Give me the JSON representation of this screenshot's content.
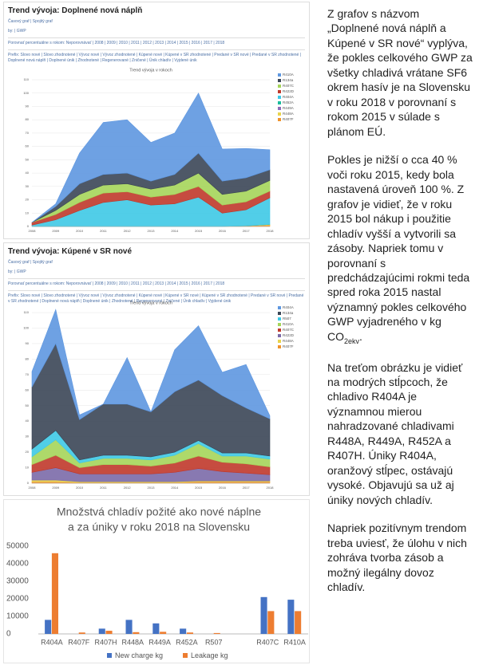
{
  "chart_data": [
    {
      "type": "area",
      "title": "Trend vývoja v rokoch",
      "header": {
        "title": "Trend vývoja: Doplnené nová náplň",
        "links": "Časový graf | Spojitý graf",
        "by": "by: | GWP",
        "compare": "Porovnať percentuálne s rokom: Neporovnávať | 2008 | 2009 | 2010 | 2011 | 2012 | 2013 | 2014 | 2015 | 2016 | 2017 | 2018",
        "prefix": "Prefix: Slovo nové | Slovo zhodnotené | Vývoz nové | Vývoz zhodnotené | Kúpené nové | Kúpené v SR zhodnotené | Predané v SR nové | Predané v SR zhodnotené | Doplnené nová náplň | Doplnené únik | Zhodnotené | Regenerované | Zničené | Únik chladív | Vyjdené únik"
      },
      "categories": [
        "2008",
        "2009",
        "2010",
        "2011",
        "2012",
        "2013",
        "2014",
        "2015",
        "2016",
        "2017",
        "2018"
      ],
      "ylim": [
        0,
        110
      ],
      "yticks": [
        0,
        10,
        20,
        30,
        40,
        50,
        60,
        70,
        80,
        90,
        100,
        110
      ],
      "grid": true,
      "series": [
        {
          "name": "R407F",
          "color": "#f0932b",
          "values": [
            0,
            0,
            0,
            0,
            0,
            0,
            0,
            0,
            0,
            0.5,
            1
          ]
        },
        {
          "name": "R448A",
          "color": "#e8d44d",
          "values": [
            0,
            0,
            0,
            0,
            0,
            0,
            0,
            0,
            0,
            0,
            0.5
          ]
        },
        {
          "name": "R449A",
          "color": "#8e6bb8",
          "values": [
            0,
            0,
            0,
            0,
            0,
            0,
            0,
            0,
            0,
            0,
            0
          ]
        },
        {
          "name": "R452A",
          "color": "#1abc9c",
          "values": [
            0,
            0,
            0,
            0,
            0,
            0,
            0,
            0,
            0,
            0,
            0
          ]
        },
        {
          "name": "R404A",
          "color": "#3ec9e6",
          "values": [
            1,
            5,
            12,
            18,
            20,
            16,
            17,
            22,
            10,
            12,
            20
          ]
        },
        {
          "name": "R422D",
          "color": "#c0392b",
          "values": [
            2,
            4,
            6,
            7,
            6,
            6,
            7,
            8,
            6,
            6,
            5
          ]
        },
        {
          "name": "R407C",
          "color": "#a5d55a",
          "values": [
            0,
            3,
            6,
            6,
            6,
            6,
            7,
            10,
            8,
            8,
            8
          ]
        },
        {
          "name": "R134a",
          "color": "#3b4656",
          "values": [
            0,
            3,
            8,
            8,
            8,
            6,
            8,
            15,
            10,
            10,
            8
          ]
        },
        {
          "name": "R410A",
          "color": "#5e97e0",
          "values": [
            0,
            2,
            23,
            39,
            40,
            29,
            31,
            45,
            24,
            22,
            15
          ]
        }
      ]
    },
    {
      "type": "area",
      "title": "Trend vývoja v rokoch",
      "header": {
        "title": "Trend vývoja: Kúpené v SR nové",
        "links": "Časový graf | Spojitý graf",
        "by": "by: | GWP",
        "compare": "Porovnať percentuálne s rokom: Neporovnávať | 2008 | 2009 | 2010 | 2011 | 2012 | 2013 | 2014 | 2015 | 2016 | 2017 | 2018",
        "prefix": "Prefix: Slovo nové | Slovo zhodnotené | Vývoz nové | Vývoz zhodnotené | Kúpené nové | Kúpené v SR nové | Kúpené v SR zhodnotené | Predané v SR nové | Predané v SR zhodnotené | Doplnené nová náplň | Doplnené únik | Zhodnotené | Regenerované | Zničené | Únik chladív | Vyjdené únik"
      },
      "categories": [
        "2008",
        "2009",
        "2010",
        "2011",
        "2012",
        "2013",
        "2014",
        "2015",
        "2016",
        "2017",
        "2018"
      ],
      "ylim": [
        0,
        110
      ],
      "yticks": [
        0,
        10,
        20,
        30,
        40,
        50,
        60,
        70,
        80,
        90,
        100,
        110
      ],
      "grid": true,
      "series": [
        {
          "name": "R407F",
          "color": "#f0932b",
          "values": [
            1,
            1,
            0.5,
            0.5,
            0.5,
            0.5,
            0.5,
            1,
            1,
            1,
            1
          ]
        },
        {
          "name": "R448A",
          "color": "#e8d44d",
          "values": [
            1,
            1,
            0.5,
            0.5,
            0.5,
            0.5,
            0.5,
            0.5,
            0.5,
            0.5,
            0.5
          ]
        },
        {
          "name": "R422D",
          "color": "#7b6aa8",
          "values": [
            5,
            8,
            5,
            5,
            5,
            5,
            6,
            8,
            6,
            5,
            4
          ]
        },
        {
          "name": "R407C",
          "color": "#c0392b",
          "values": [
            5,
            8,
            4,
            6,
            6,
            5,
            6,
            8,
            6,
            6,
            5
          ]
        },
        {
          "name": "R410A",
          "color": "#a5d55a",
          "values": [
            5,
            10,
            3,
            4,
            4,
            4,
            5,
            8,
            4,
            5,
            5
          ]
        },
        {
          "name": "R507",
          "color": "#3ec9e6",
          "values": [
            5,
            6,
            2,
            2,
            2,
            2,
            2,
            2,
            2,
            2,
            2
          ]
        },
        {
          "name": "R134a",
          "color": "#3b4656",
          "values": [
            40,
            56,
            26,
            33,
            33,
            29,
            39,
            39,
            37,
            29,
            24
          ]
        },
        {
          "name": "R404A",
          "color": "#5e97e0",
          "values": [
            10,
            22,
            3,
            0,
            30,
            0,
            27,
            35,
            15,
            28,
            2
          ]
        }
      ]
    },
    {
      "type": "bar",
      "title": [
        "Množstvá chladív požité ako nové náplne",
        "a za úniky v roku 2018 na Slovensku"
      ],
      "categories": [
        "R404A",
        "R407F",
        "R407H",
        "R448A",
        "R449A",
        "R452A",
        "R507",
        null,
        "R407C",
        "R410A"
      ],
      "ylim": [
        0,
        50000
      ],
      "yticks": [
        0,
        10000,
        20000,
        30000,
        40000,
        50000
      ],
      "grid": false,
      "series": [
        {
          "name": "New charge kg",
          "color": "#4472c4",
          "values": [
            8000,
            0,
            3000,
            8000,
            6000,
            3000,
            0,
            null,
            21000,
            19500
          ]
        },
        {
          "name": "Leakage kg",
          "color": "#ed7d31",
          "values": [
            46000,
            800,
            1800,
            1000,
            1200,
            800,
            500,
            null,
            13000,
            13000
          ]
        }
      ]
    }
  ],
  "document": {
    "paragraphs": [
      {
        "text": "Z grafov s názvom „Doplnené nová náplň a Kúpené v SR nové“ vyplýva, že pokles celkového GWP za všetky chladivá vrátane SF6 okrem hasív je na Slovensku v roku 2018 v porovnaní s rokom 2015 v súlade s plánom EÚ."
      },
      {
        "text": "Pokles je nižší o cca 40 % voči roku 2015, kedy bola nastavená úroveň 100 %. Z grafov je vidieť, že v roku 2015 bol nákup i použitie chladív vyšší a vytvorili sa zásoby. Napriek tomu v porovnaní s predchádzajúcimi rokmi teda spred roka 2015 nastal významný pokles celkového GWP vyjadreného v kg CO",
        "sub": "2ekv",
        "after": "."
      },
      {
        "text": "Na treťom obrázku je vidieť na modrých stĺpcoch, že chladivo R404A je významnou mierou nahradzované chladivami R448A, R449A, R452A a R407H. Úniky R404A, oranžový stĺpec, ostávajú vysoké. Objavujú sa už aj úniky nových chladív."
      },
      {
        "text": "Napriek pozitívnym trendom treba uviesť, že úlohu v nich zohráva tvorba zásob a možný ilegálny dovoz chladív."
      }
    ]
  }
}
